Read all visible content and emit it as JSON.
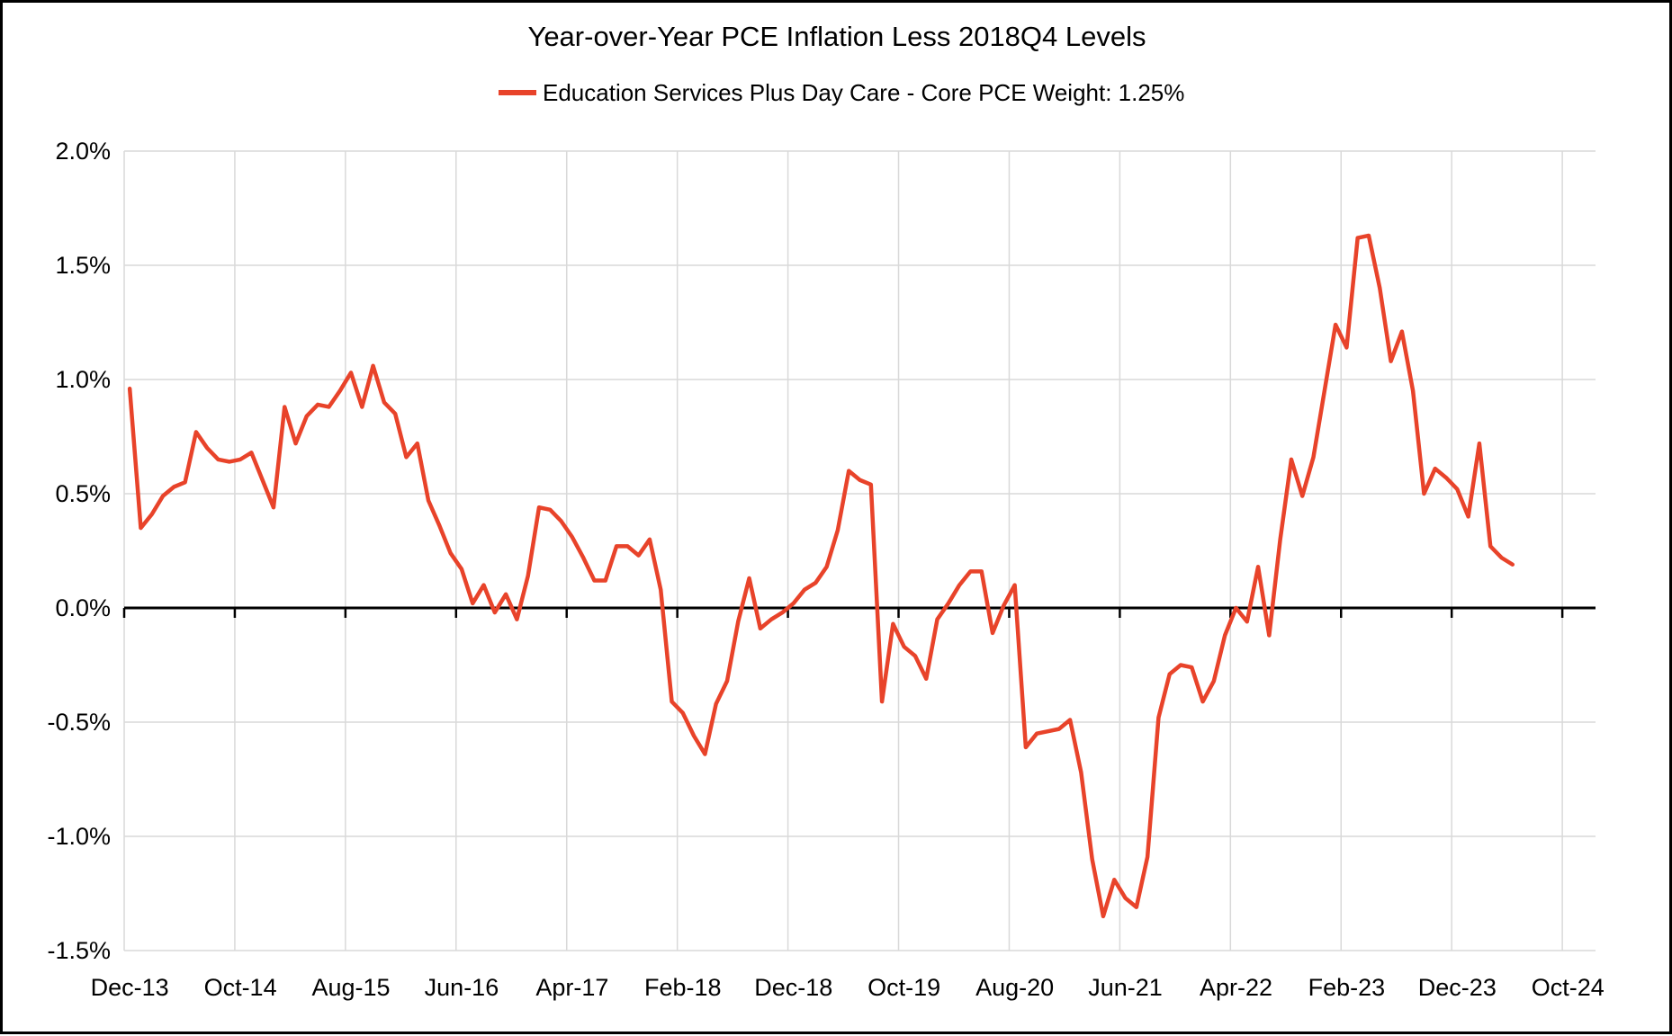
{
  "chart_data": {
    "type": "line",
    "title": "Year-over-Year PCE Inflation Less 2018Q4 Levels",
    "legend": {
      "label": "Education Services Plus Day Care  - Core PCE Weight: 1.25%",
      "position": "top"
    },
    "grid": true,
    "grid_color": "#d9d9d9",
    "zero_axis_color": "#000000",
    "background_color": "#ffffff",
    "ylabel": "",
    "xlabel": "",
    "ylim": [
      -1.5,
      2.0
    ],
    "y_tick_step": 0.5,
    "y_ticks": [
      {
        "value": 2.0,
        "label": "2.0%"
      },
      {
        "value": 1.5,
        "label": "1.5%"
      },
      {
        "value": 1.0,
        "label": "1.0%"
      },
      {
        "value": 0.5,
        "label": "0.5%"
      },
      {
        "value": 0.0,
        "label": "0.0%"
      },
      {
        "value": -0.5,
        "label": "-0.5%"
      },
      {
        "value": -1.0,
        "label": "-1.0%"
      },
      {
        "value": -1.5,
        "label": "-1.5%"
      }
    ],
    "x_tick_interval_months": 10,
    "x_tick_labels": [
      "Dec-13",
      "Oct-14",
      "Aug-15",
      "Jun-16",
      "Apr-17",
      "Feb-18",
      "Dec-18",
      "Oct-19",
      "Aug-20",
      "Jun-21",
      "Apr-22",
      "Feb-23",
      "Dec-23",
      "Oct-24"
    ],
    "x_axis_total_months": 133,
    "series": [
      {
        "name": "Education Services Plus Day Care  - Core PCE Weight: 1.25%",
        "color": "#e8432a",
        "start_month": "Dec-13",
        "frequency": "monthly",
        "values": [
          0.96,
          0.35,
          0.41,
          0.49,
          0.53,
          0.55,
          0.77,
          0.7,
          0.65,
          0.64,
          0.65,
          0.68,
          0.56,
          0.44,
          0.88,
          0.72,
          0.84,
          0.89,
          0.88,
          0.95,
          1.03,
          0.88,
          1.06,
          0.9,
          0.85,
          0.66,
          0.72,
          0.47,
          0.36,
          0.24,
          0.17,
          0.02,
          0.1,
          -0.02,
          0.06,
          -0.05,
          0.14,
          0.44,
          0.43,
          0.38,
          0.31,
          0.22,
          0.12,
          0.12,
          0.27,
          0.27,
          0.23,
          0.3,
          0.08,
          -0.41,
          -0.46,
          -0.56,
          -0.64,
          -0.42,
          -0.32,
          -0.06,
          0.13,
          -0.09,
          -0.05,
          -0.02,
          0.02,
          0.08,
          0.11,
          0.18,
          0.34,
          0.6,
          0.56,
          0.54,
          -0.41,
          -0.07,
          -0.17,
          -0.21,
          -0.31,
          -0.05,
          0.02,
          0.1,
          0.16,
          0.16,
          -0.11,
          0.01,
          0.1,
          -0.61,
          -0.55,
          -0.54,
          -0.53,
          -0.49,
          -0.72,
          -1.1,
          -1.35,
          -1.19,
          -1.27,
          -1.31,
          -1.09,
          -0.48,
          -0.29,
          -0.25,
          -0.26,
          -0.41,
          -0.32,
          -0.12,
          0.0,
          -0.06,
          0.18,
          -0.12,
          0.3,
          0.65,
          0.49,
          0.66,
          0.95,
          1.24,
          1.14,
          1.62,
          1.63,
          1.4,
          1.08,
          1.21,
          0.95,
          0.5,
          0.61,
          0.57,
          0.52,
          0.4,
          0.72,
          0.27,
          0.22,
          0.19
        ]
      }
    ]
  }
}
